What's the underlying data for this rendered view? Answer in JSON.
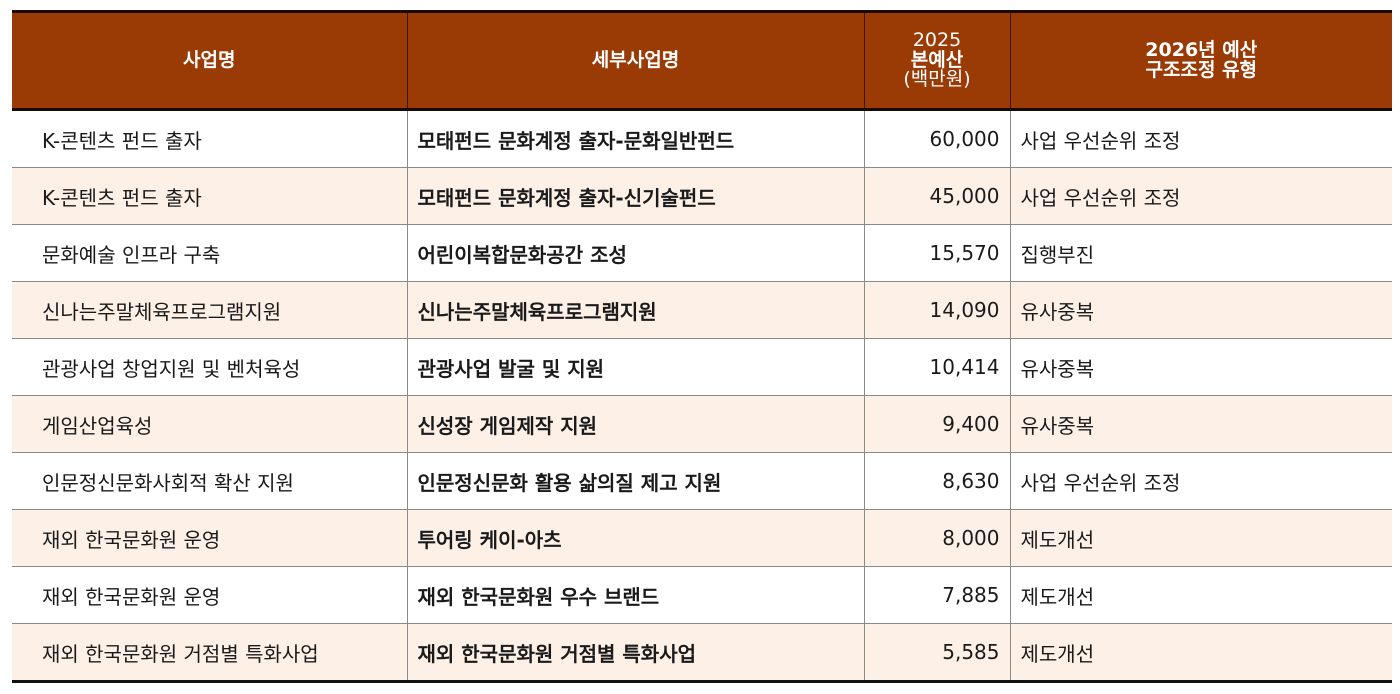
{
  "table": {
    "headers": {
      "project": "사업명",
      "detail": "세부사업명",
      "budget_year": "2025",
      "budget_label": "본예산",
      "budget_unit": "(백만원)",
      "type_line1": "2026년 예산",
      "type_line2": "구조조정 유형"
    },
    "rows": [
      {
        "project": "K-콘텐츠 펀드  출자",
        "detail": "모태펀드 문화계정 출자-문화일반펀드",
        "budget": "60,000",
        "type": "사업 우선순위 조정"
      },
      {
        "project": "K-콘텐츠  펀드 출자",
        "detail": "모태펀드 문화계정 출자-신기술펀드",
        "budget": "45,000",
        "type": "사업 우선순위 조정"
      },
      {
        "project": "문화예술 인프라  구축",
        "detail": "어린이복합문화공간 조성",
        "budget": "15,570",
        "type": "집행부진"
      },
      {
        "project": "신나는주말체육프로그램지원",
        "detail": "신나는주말체육프로그램지원",
        "budget": "14,090",
        "type": "유사중복"
      },
      {
        "project": "관광사업  창업지원 및 벤처육성",
        "detail": "관광사업 발굴 및 지원",
        "budget": "10,414",
        "type": "유사중복"
      },
      {
        "project": "게임산업육성",
        "detail": "신성장 게임제작 지원",
        "budget": "9,400",
        "type": "유사중복"
      },
      {
        "project": "인문정신문화사회적  확산 지원",
        "detail": "인문정신문화 활용 삶의질 제고 지원",
        "budget": "8,630",
        "type": "사업 우선순위 조정"
      },
      {
        "project": "재외 한국문화원  운영",
        "detail": "투어링 케이-아츠",
        "budget": "8,000",
        "type": "제도개선"
      },
      {
        "project": "재외 한국문화원  운영",
        "detail": "재외 한국문화원 우수 브랜드",
        "budget": "7,885",
        "type": "제도개선"
      },
      {
        "project": "재외 한국문화원  거점별 특화사업",
        "detail": "재외 한국문화원 거점별 특화사업",
        "budget": "5,585",
        "type": "제도개선"
      }
    ]
  },
  "colors": {
    "header_bg": "#9a3b06",
    "header_text": "#ffffff",
    "row_alt_bg": "#fdf0e7",
    "row_bg": "#ffffff"
  }
}
